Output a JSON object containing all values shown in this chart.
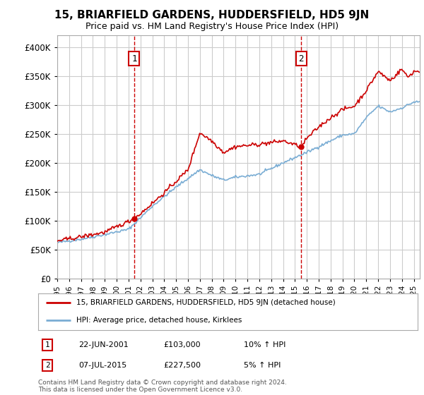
{
  "title": "15, BRIARFIELD GARDENS, HUDDERSFIELD, HD5 9JN",
  "subtitle": "Price paid vs. HM Land Registry's House Price Index (HPI)",
  "ytick_values": [
    0,
    50000,
    100000,
    150000,
    200000,
    250000,
    300000,
    350000,
    400000
  ],
  "ylim": [
    0,
    420000
  ],
  "xlim_start": 1995.0,
  "xlim_end": 2025.5,
  "background_color": "#ffffff",
  "plot_bg_color": "#ffffff",
  "grid_color": "#cccccc",
  "sale1_x": 2001.47,
  "sale1_y": 103000,
  "sale1_label": "1",
  "sale1_date": "22-JUN-2001",
  "sale1_price": "£103,000",
  "sale1_hpi": "10% ↑ HPI",
  "sale2_x": 2015.52,
  "sale2_y": 227500,
  "sale2_label": "2",
  "sale2_date": "07-JUL-2015",
  "sale2_price": "£227,500",
  "sale2_hpi": "5% ↑ HPI",
  "legend_line1": "15, BRIARFIELD GARDENS, HUDDERSFIELD, HD5 9JN (detached house)",
  "legend_line2": "HPI: Average price, detached house, Kirklees",
  "footer": "Contains HM Land Registry data © Crown copyright and database right 2024.\nThis data is licensed under the Open Government Licence v3.0.",
  "red_color": "#cc0000",
  "blue_color": "#7aadd4",
  "vline_color": "#cc0000",
  "marker_box_color": "#cc0000"
}
